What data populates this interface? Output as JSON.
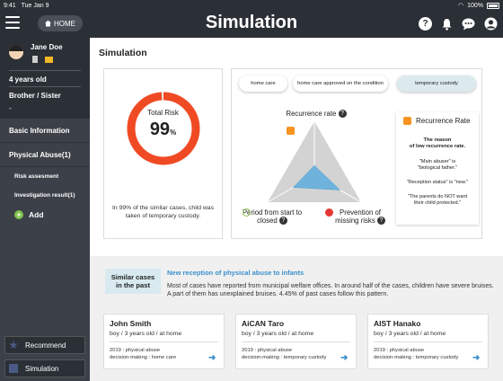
{
  "status": {
    "time": "9:41",
    "date": "Tue Jan 9",
    "battery": "100%"
  },
  "header": {
    "home_label": "HOME",
    "title": "Simulation"
  },
  "profile": {
    "name": "Jane Doe",
    "age": "4 years old",
    "relation": "Brother / Sister",
    "relation_value": "-"
  },
  "sidebar": {
    "items": [
      {
        "label": "Basic Information"
      },
      {
        "label": "Physical Abuse(1)"
      }
    ],
    "subitems": [
      {
        "label": "Risk assesment"
      },
      {
        "label": "Investigation result(1)"
      }
    ],
    "add_label": "Add",
    "recommend_label": "Recommend",
    "simulation_label": "Simulation"
  },
  "main": {
    "title": "Simulation"
  },
  "risk": {
    "label": "Total Risk",
    "value": "99",
    "unit": "%",
    "percent": 99,
    "note": "In 99% of the similar cases, child was taken of temporary custody.",
    "color": "#f04a24"
  },
  "options": [
    {
      "label": "home care",
      "active": false
    },
    {
      "label": "home care approved on the condition",
      "active": false
    },
    {
      "label": "temporary custody",
      "active": true
    }
  ],
  "radar": {
    "axes": [
      {
        "label": "Recurrence rate",
        "value": 0.18
      },
      {
        "label": "Period from start to closed",
        "value": 0.45
      },
      {
        "label": "Prevention of missing risks",
        "value": 0.55
      }
    ],
    "fill_color": "#6fb3dd"
  },
  "recurrence": {
    "title": "Recurrence Rate",
    "subtitle_1": "The reason",
    "subtitle_2": "of low recurrence rate.",
    "items": [
      {
        "line1": "\"Main abuser\" is",
        "line2": "\"biological father.\""
      },
      {
        "line1": "\"Reception status\" is \"new.\"",
        "line2": ""
      },
      {
        "line1": "\"The parents do NOT want",
        "line2": "their child protected.\""
      }
    ]
  },
  "similar": {
    "tag_1": "Similar cases",
    "tag_2": "in the past",
    "heading": "New reception of physical abuse to infants",
    "description": "Most of cases have reported from municipal welfare offices.  In around half of the cases, children have severe bruises.  A part of them has unexplained bruises.  4.45% of past cases follow this pattern.",
    "cases": [
      {
        "name": "John Smith",
        "meta": "boy / 3 years old / at home",
        "line1": "2019 : physical abuse",
        "line2": "decision-making : home care"
      },
      {
        "name": "AiCAN Taro",
        "meta": "boy / 3 years old / at home",
        "line1": "2019 : physical abuse",
        "line2": "decision-making : temporary custody"
      },
      {
        "name": "AIST Hanako",
        "meta": "boy / 3 years old / at home",
        "line1": "2019 : physical abuse",
        "line2": "decision-making : temporary custody"
      }
    ]
  }
}
